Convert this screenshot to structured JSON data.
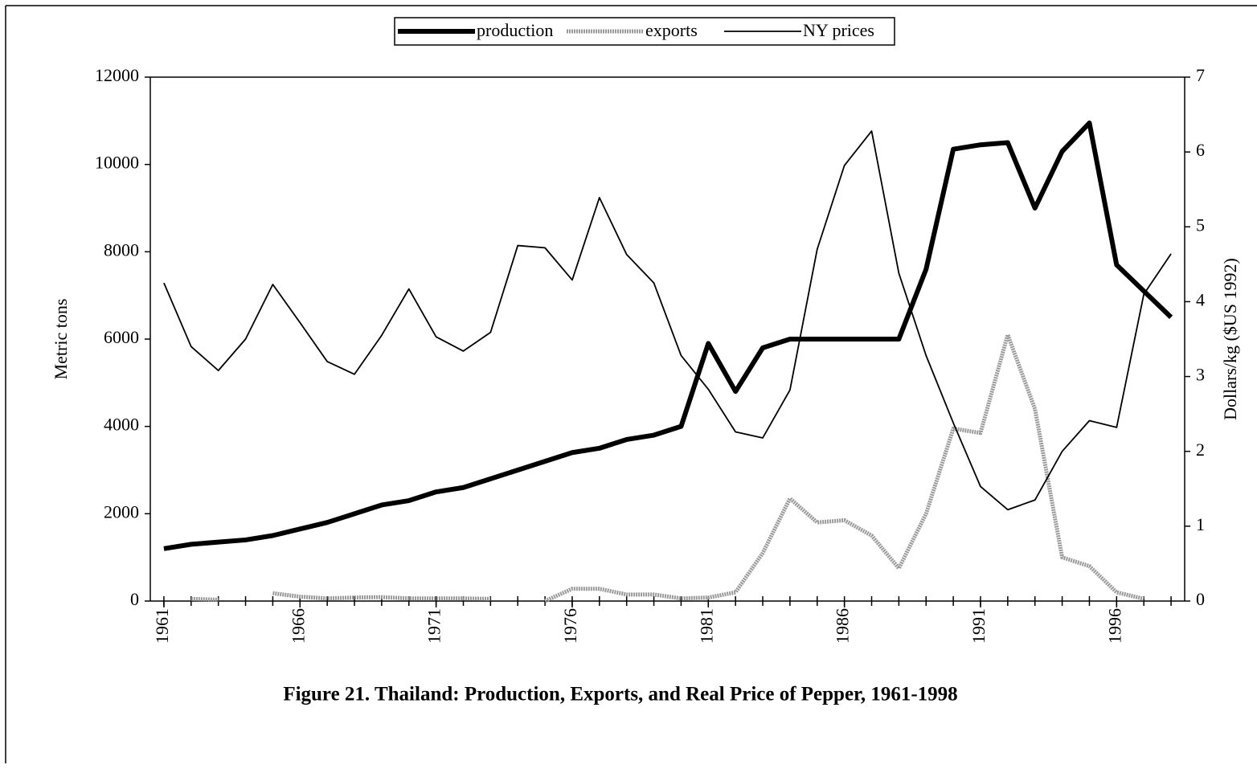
{
  "chart_data": {
    "type": "line",
    "title": "Figure 21. Thailand: Production, Exports, and Real Price of Pepper, 1961-1998",
    "y_label": "Metric tons",
    "y2_label": "Dollars/kg ($US 1992)",
    "x": [
      1961,
      1962,
      1963,
      1964,
      1965,
      1966,
      1967,
      1968,
      1969,
      1970,
      1971,
      1972,
      1973,
      1974,
      1975,
      1976,
      1977,
      1978,
      1979,
      1980,
      1981,
      1982,
      1983,
      1984,
      1985,
      1986,
      1987,
      1988,
      1989,
      1990,
      1991,
      1992,
      1993,
      1994,
      1995,
      1996,
      1997,
      1998
    ],
    "xlim": [
      1960.5,
      1998.5
    ],
    "xticks": [
      1961,
      1966,
      1971,
      1976,
      1981,
      1986,
      1991,
      1996
    ],
    "ylim": [
      0,
      12000
    ],
    "yticks": [
      0,
      2000,
      4000,
      6000,
      8000,
      10000,
      12000
    ],
    "y2lim": [
      0,
      7
    ],
    "y2ticks": [
      0,
      1,
      2,
      3,
      4,
      5,
      6,
      7
    ],
    "legend": "top",
    "series": [
      {
        "name": "production",
        "color": "#000000",
        "values": [
          1200,
          1300,
          1350,
          1400,
          1500,
          1650,
          1800,
          2000,
          2200,
          2300,
          2500,
          2600,
          2800,
          3000,
          3200,
          3400,
          3500,
          3700,
          3800,
          4000,
          5900,
          4800,
          5800,
          6000,
          6000,
          6000,
          6000,
          6000,
          7600,
          10350,
          10450,
          10500,
          9000,
          10300,
          10950,
          7700,
          7100,
          6500
        ]
      },
      {
        "name": "exports",
        "color": "#9a9a9a",
        "values": [
          null,
          50,
          30,
          null,
          180,
          100,
          60,
          80,
          90,
          60,
          60,
          60,
          50,
          null,
          0,
          280,
          280,
          150,
          150,
          60,
          80,
          200,
          1100,
          2350,
          1800,
          1850,
          1500,
          750,
          2000,
          3950,
          3850,
          6100,
          4400,
          1000,
          800,
          200,
          50,
          null
        ]
      },
      {
        "name": "NY prices",
        "color": "#000000",
        "axis": "y2",
        "values": [
          4.25,
          3.4,
          3.08,
          3.5,
          4.23,
          3.72,
          3.2,
          3.03,
          3.55,
          4.17,
          3.53,
          3.34,
          3.59,
          4.75,
          4.72,
          4.29,
          5.39,
          4.63,
          4.25,
          3.28,
          2.83,
          2.26,
          2.18,
          2.82,
          4.7,
          5.82,
          6.28,
          4.38,
          3.28,
          2.38,
          1.53,
          1.22,
          1.35,
          2.0,
          2.41,
          2.32,
          4.1,
          4.64
        ]
      }
    ]
  }
}
